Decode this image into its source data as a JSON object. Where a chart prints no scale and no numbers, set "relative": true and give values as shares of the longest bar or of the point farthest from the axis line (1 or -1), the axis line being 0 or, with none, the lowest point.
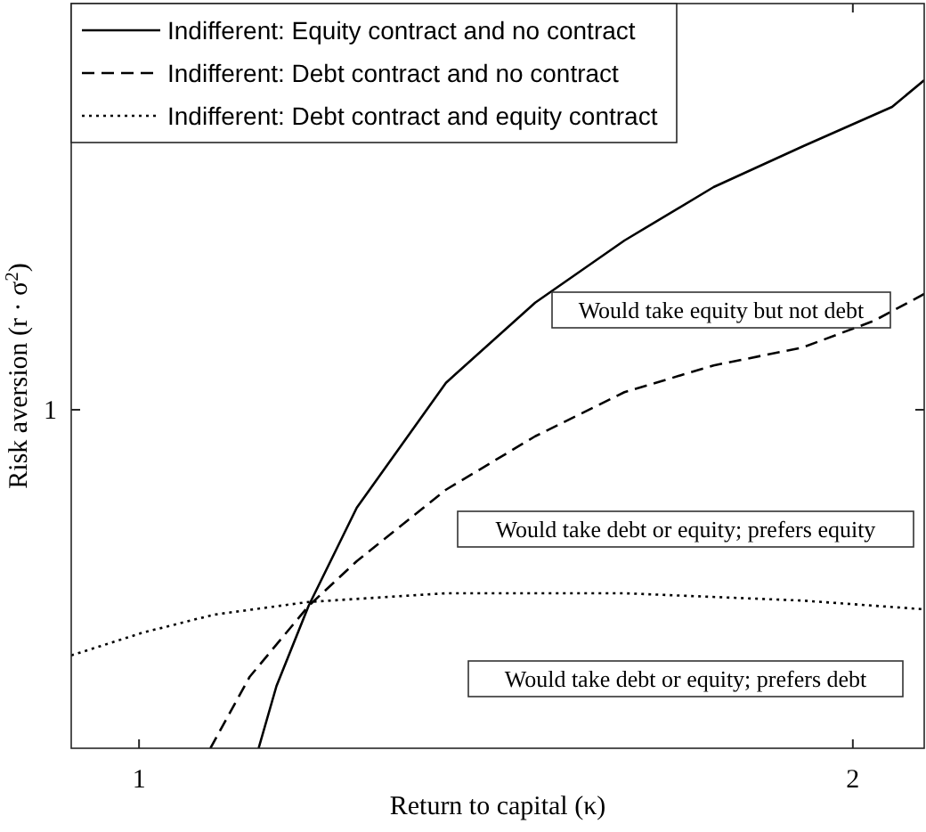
{
  "chart_data": {
    "type": "line",
    "relative": true,
    "xlabel": "Return to capital (κ)",
    "ylabel": "Risk aversion (r · σ$^{2}$)",
    "xlim": [
      0.905,
      2.1
    ],
    "xticks": [
      1,
      2
    ],
    "legend": "top left",
    "series": [
      {
        "name": "Indifferent: Equity contract and no contract",
        "color": "#000000",
        "line_style": "solid",
        "x": [
          1.1675,
          1.1925,
          1.2375,
          1.305,
          1.43,
          1.555,
          1.68,
          1.805,
          1.93,
          2.055,
          2.1
        ],
        "values": [
          0,
          0.093,
          0.213,
          0.36,
          0.547,
          0.667,
          0.76,
          0.84,
          0.901,
          0.96,
          1
        ]
      },
      {
        "name": "Indifferent: Debt contract and no contract",
        "color": "#000000",
        "line_style": "dashed",
        "x": [
          1.1,
          1.155,
          1.2375,
          1.305,
          1.43,
          1.555,
          1.68,
          1.805,
          1.93,
          2.03,
          2.1
        ],
        "values": [
          0,
          0.107,
          0.213,
          0.28,
          0.387,
          0.467,
          0.533,
          0.573,
          0.6,
          0.64,
          0.68
        ]
      },
      {
        "name": "Indifferent: Debt contract and equity contract",
        "color": "#000000",
        "line_style": "dotted",
        "x": [
          0.905,
          1.005,
          1.105,
          1.2375,
          1.43,
          1.68,
          1.93,
          2.1
        ],
        "values": [
          0.139,
          0.173,
          0.2,
          0.219,
          0.232,
          0.232,
          0.221,
          0.208
        ]
      }
    ],
    "annotations": [
      "1",
      "Would take equity but not debt",
      "Would take debt or equity; prefers equity",
      "Would take debt or equity; prefers debt"
    ]
  }
}
